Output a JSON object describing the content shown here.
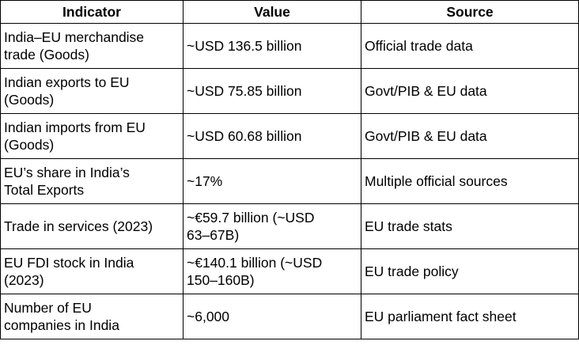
{
  "table": {
    "headers": [
      "Indicator",
      "Value",
      "Source"
    ],
    "rows": [
      [
        "India–EU merchandise\ntrade (Goods)",
        "~USD 136.5 billion",
        "Official trade data"
      ],
      [
        "Indian exports to EU\n(Goods)",
        "~USD 75.85 billion",
        "Govt/PIB & EU data"
      ],
      [
        "Indian imports from EU\n(Goods)",
        "~USD 60.68 billion",
        "Govt/PIB & EU data"
      ],
      [
        "EU’s share in India’s\nTotal Exports",
        "~17%",
        "Multiple official sources"
      ],
      [
        "Trade in services (2023)",
        "~€59.7 billion (~USD\n63–67B)",
        "EU trade stats"
      ],
      [
        "EU FDI stock in India\n(2023)",
        "~€140.1 billion (~USD\n150–160B)",
        "EU trade policy"
      ],
      [
        "Number of EU\ncompanies in India",
        "~6,000",
        "EU parliament fact sheet"
      ]
    ]
  }
}
